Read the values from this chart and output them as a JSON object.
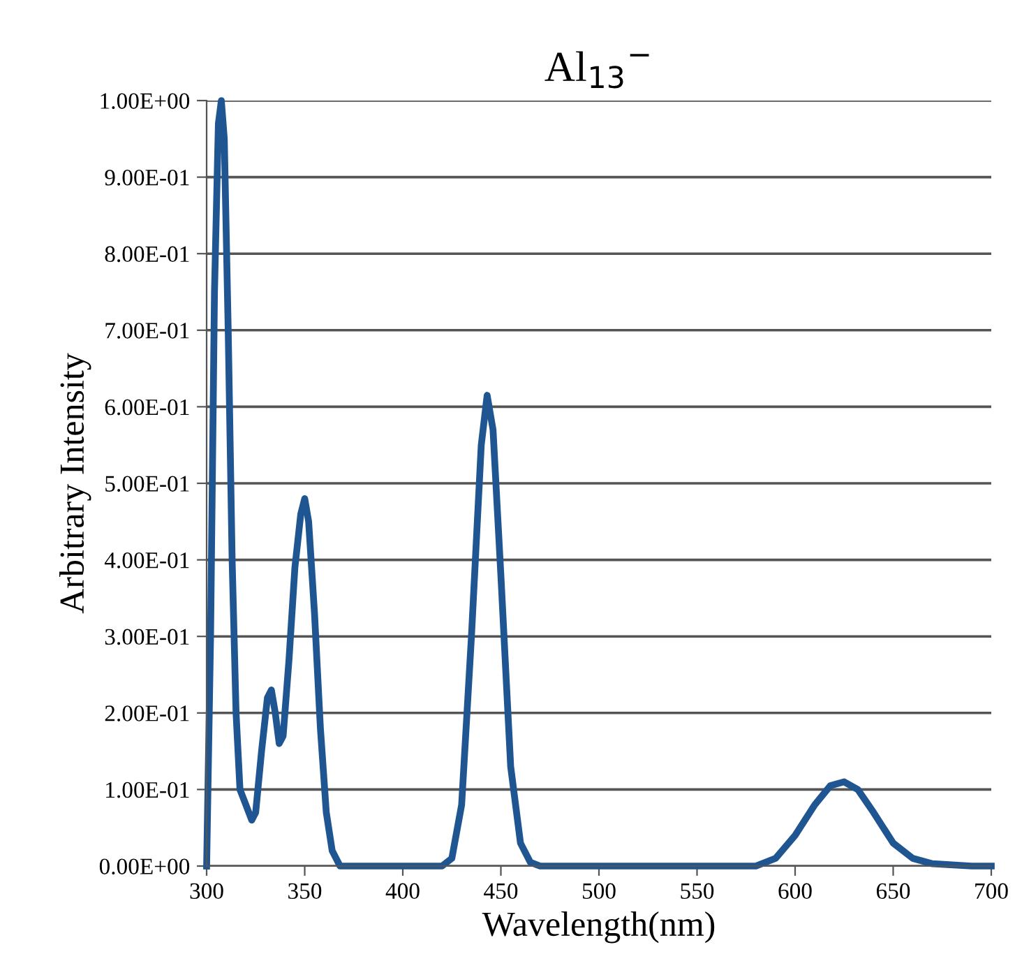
{
  "chart_data": {
    "type": "line",
    "title": "Al$_{13}$$^{−}$",
    "xlabel": "Wavelength(nm)",
    "ylabel": "Arbitrary Intensity",
    "series": [
      {
        "color": "#1f5591",
        "x": [
          300,
          302,
          304,
          306,
          307.5,
          309,
          311,
          313,
          315,
          317,
          320,
          323,
          325,
          328,
          331,
          333,
          335,
          337,
          339,
          342,
          345,
          348,
          350,
          352,
          355,
          358,
          361,
          364,
          368,
          380,
          420,
          425,
          430,
          435,
          440,
          443,
          446,
          450,
          455,
          460,
          465,
          470,
          580,
          590,
          600,
          610,
          618,
          625,
          632,
          640,
          650,
          660,
          670,
          690,
          700
        ],
        "values": [
          0,
          0.3,
          0.75,
          0.97,
          1.0,
          0.95,
          0.7,
          0.4,
          0.2,
          0.1,
          0.08,
          0.06,
          0.07,
          0.15,
          0.22,
          0.23,
          0.2,
          0.16,
          0.17,
          0.27,
          0.39,
          0.46,
          0.48,
          0.45,
          0.33,
          0.18,
          0.07,
          0.02,
          0,
          0,
          0,
          0.01,
          0.08,
          0.3,
          0.55,
          0.615,
          0.57,
          0.38,
          0.13,
          0.03,
          0.005,
          0,
          0,
          0.01,
          0.04,
          0.08,
          0.105,
          0.11,
          0.1,
          0.07,
          0.03,
          0.01,
          0.003,
          0,
          0
        ]
      }
    ],
    "xlim": [
      300,
      700
    ],
    "xticks": [
      300,
      350,
      400,
      450,
      500,
      550,
      600,
      650,
      700
    ],
    "ylim": [
      0,
      1
    ],
    "yticks": [
      {
        "value": 0,
        "label": "0.00E+00"
      },
      {
        "value": 0.1,
        "label": "1.00E-01"
      },
      {
        "value": 0.2,
        "label": "2.00E-01"
      },
      {
        "value": 0.3,
        "label": "3.00E-01"
      },
      {
        "value": 0.4,
        "label": "4.00E-01"
      },
      {
        "value": 0.5,
        "label": "5.00E-01"
      },
      {
        "value": 0.6,
        "label": "6.00E-01"
      },
      {
        "value": 0.7,
        "label": "7.00E-01"
      },
      {
        "value": 0.8,
        "label": "8.00E-01"
      },
      {
        "value": 0.9,
        "label": "9.00E-01"
      },
      {
        "value": 1.0,
        "label": "1.00E+00"
      }
    ],
    "grid": "y",
    "legend": false,
    "marker": "none",
    "line_style": "solid"
  }
}
